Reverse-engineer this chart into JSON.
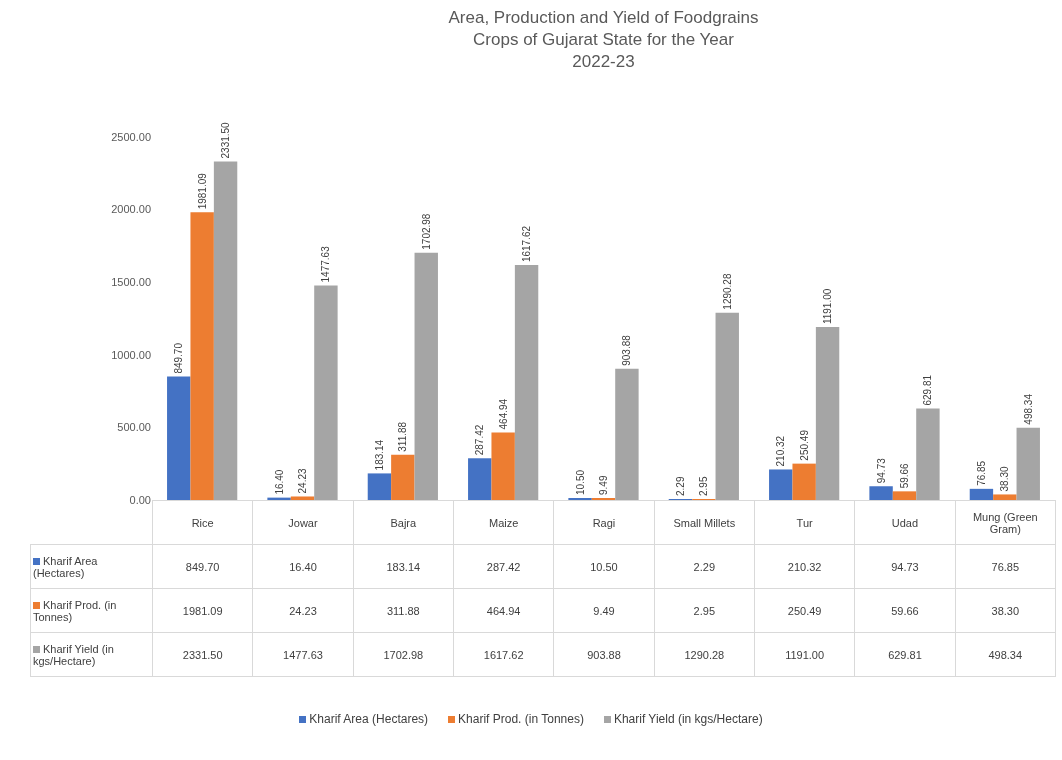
{
  "chart_data": {
    "type": "bar",
    "title": "Area, Production and Yield of Foodgrains\nCrops of Gujarat State for the Year\n2022-23",
    "categories": [
      "Rice",
      "Jowar",
      "Bajra",
      "Maize",
      "Ragi",
      "Small Millets",
      "Tur",
      "Udad",
      "Mung (Green Gram)"
    ],
    "series": [
      {
        "name": "Kharif Area (Hectares)",
        "color": "#4472c4",
        "values": [
          849.7,
          16.4,
          183.14,
          287.42,
          10.5,
          2.29,
          210.32,
          94.73,
          76.85
        ],
        "value_labels": [
          "849.70",
          "16.40",
          "183.14",
          "287.42",
          "10.50",
          "2.29",
          "210.32",
          "94.73",
          "76.85"
        ]
      },
      {
        "name": "Kharif Prod. (in Tonnes)",
        "color": "#ed7d31",
        "values": [
          1981.09,
          24.23,
          311.88,
          464.94,
          9.49,
          2.95,
          250.49,
          59.66,
          38.3
        ],
        "value_labels": [
          "1981.09",
          "24.23",
          "311.88",
          "464.94",
          "9.49",
          "2.95",
          "250.49",
          "59.66",
          "38.30"
        ]
      },
      {
        "name": "Kharif Yield (in kgs/Hectare)",
        "color": "#a5a5a5",
        "values": [
          2331.5,
          1477.63,
          1702.98,
          1617.62,
          903.88,
          1290.28,
          1191,
          629.81,
          498.34
        ],
        "value_labels": [
          "2331.50",
          "1477.63",
          "1702.98",
          "1617.62",
          "903.88",
          "1290.28",
          "1191.00",
          "629.81",
          "498.34"
        ]
      }
    ],
    "ylim": [
      0,
      2500
    ],
    "yticks": [
      {
        "value": 0,
        "label": "0.00"
      },
      {
        "value": 500,
        "label": "500.00"
      },
      {
        "value": 1000,
        "label": "1000.00"
      },
      {
        "value": 1500,
        "label": "1500.00"
      },
      {
        "value": 2000,
        "label": "2000.00"
      },
      {
        "value": 2500,
        "label": "2500.00"
      }
    ],
    "legend": "bottom"
  }
}
